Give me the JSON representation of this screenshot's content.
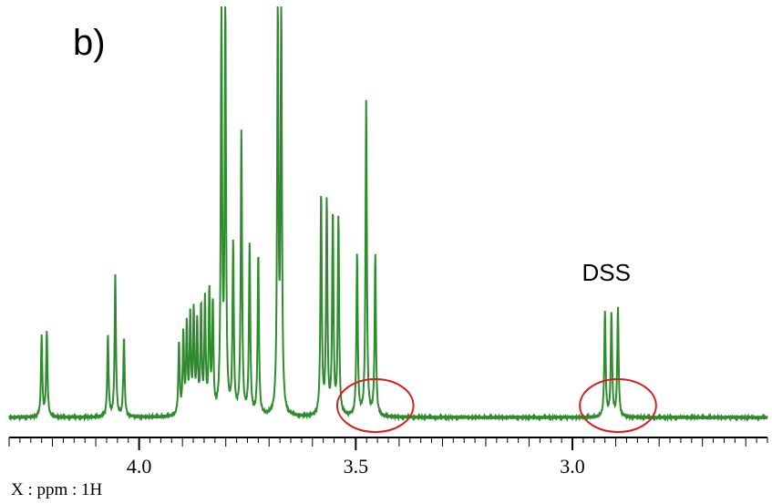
{
  "panel_label": "b)",
  "colors": {
    "spectrum": "#2e8b2e",
    "circle": "#d62020",
    "axis": "#000000"
  },
  "chart_data": {
    "type": "line",
    "title": "",
    "xlabel": "X : ppm : 1H",
    "ylabel": "",
    "xlim": [
      4.3,
      2.55
    ],
    "x_reversed": true,
    "ylim": [
      0,
      1
    ],
    "grid": false,
    "x_major_ticks": [
      4.0,
      3.5,
      3.0
    ],
    "x_tick_labels": [
      "4.0",
      "3.5",
      "3.0"
    ],
    "x_minor_step": 0.025,
    "series": [
      {
        "peaks": [
          {
            "x": 4.225,
            "h": 0.2
          },
          {
            "x": 4.213,
            "h": 0.21
          },
          {
            "x": 4.072,
            "h": 0.2
          },
          {
            "x": 4.055,
            "h": 0.35
          },
          {
            "x": 4.035,
            "h": 0.2
          },
          {
            "x": 3.908,
            "h": 0.18
          },
          {
            "x": 3.898,
            "h": 0.2
          },
          {
            "x": 3.89,
            "h": 0.22
          },
          {
            "x": 3.882,
            "h": 0.24
          },
          {
            "x": 3.874,
            "h": 0.25
          },
          {
            "x": 3.866,
            "h": 0.22
          },
          {
            "x": 3.857,
            "h": 0.26
          },
          {
            "x": 3.848,
            "h": 0.28
          },
          {
            "x": 3.838,
            "h": 0.3
          },
          {
            "x": 3.83,
            "h": 0.27
          },
          {
            "x": 3.81,
            "h": 1.0
          },
          {
            "x": 3.801,
            "h": 1.0
          },
          {
            "x": 3.783,
            "h": 0.42
          },
          {
            "x": 3.764,
            "h": 0.7
          },
          {
            "x": 3.745,
            "h": 0.42
          },
          {
            "x": 3.725,
            "h": 0.4
          },
          {
            "x": 3.68,
            "h": 1.0
          },
          {
            "x": 3.672,
            "h": 1.0
          },
          {
            "x": 3.58,
            "h": 0.55
          },
          {
            "x": 3.567,
            "h": 0.53
          },
          {
            "x": 3.553,
            "h": 0.5
          },
          {
            "x": 3.54,
            "h": 0.49
          },
          {
            "x": 3.497,
            "h": 0.4
          },
          {
            "x": 3.476,
            "h": 0.78
          },
          {
            "x": 3.455,
            "h": 0.4
          },
          {
            "x": 2.925,
            "h": 0.26
          },
          {
            "x": 2.91,
            "h": 0.26
          },
          {
            "x": 2.895,
            "h": 0.27
          }
        ]
      }
    ],
    "annotations": [
      {
        "text": "DSS",
        "x": 2.905
      }
    ],
    "highlight_circles": [
      {
        "x_center": 3.455,
        "x_halfwidth": 0.088
      },
      {
        "x_center": 2.895,
        "x_halfwidth": 0.088
      }
    ]
  }
}
